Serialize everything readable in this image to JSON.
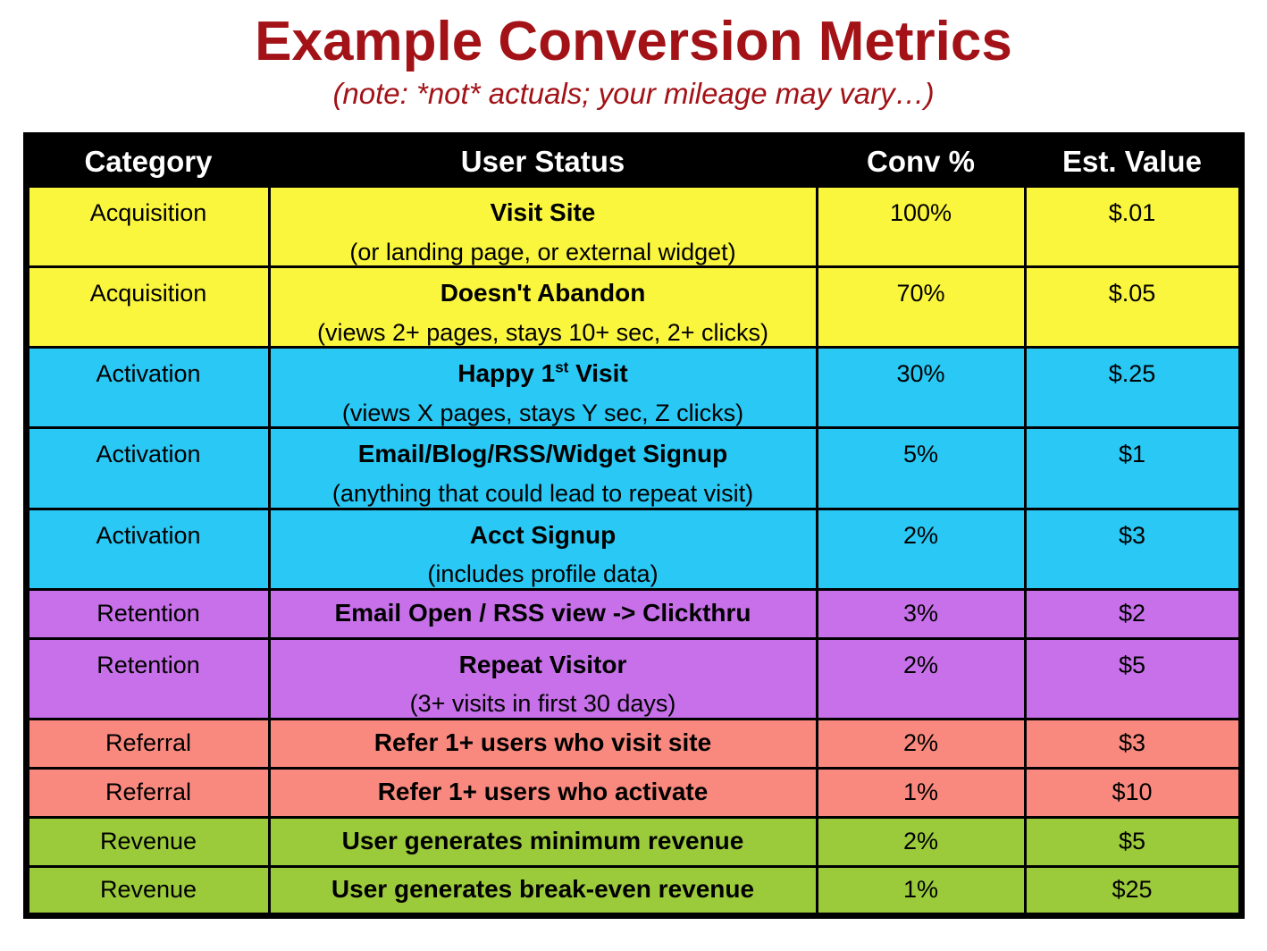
{
  "title": "Example Conversion Metrics",
  "subtitle": "(note: *not* actuals; your mileage may vary…)",
  "colors": {
    "title_text": "#A21217",
    "header_bg": "#000000",
    "header_text": "#FFFFFF",
    "acquisition": "#FAF53D",
    "activation": "#29C8F5",
    "retention": "#C770E9",
    "referral": "#F9897F",
    "revenue": "#9BCA3B"
  },
  "table": {
    "columns": [
      "Category",
      "User Status",
      "Conv %",
      "Est. Value"
    ],
    "rows": [
      {
        "category": "Acquisition",
        "color_key": "acquisition",
        "status": "Visit Site",
        "note": "(or landing page, or external widget)",
        "conv": "100%",
        "value": "$.01"
      },
      {
        "category": "Acquisition",
        "color_key": "acquisition",
        "status": "Doesn't Abandon",
        "note": "(views 2+ pages, stays 10+ sec, 2+ clicks)",
        "conv": "70%",
        "value": "$.05"
      },
      {
        "category": "Activation",
        "color_key": "activation",
        "status_parts": [
          {
            "text": "Happy 1"
          },
          {
            "text": "st",
            "sup": true
          },
          {
            "text": " Visit"
          }
        ],
        "note": "(views X pages, stays Y sec, Z clicks)",
        "conv": "30%",
        "value": "$.25"
      },
      {
        "category": "Activation",
        "color_key": "activation",
        "status": "Email/Blog/RSS/Widget Signup",
        "note": "(anything that could lead to repeat visit)",
        "conv": "5%",
        "value": "$1"
      },
      {
        "category": "Activation",
        "color_key": "activation",
        "status": "Acct Signup",
        "note": "(includes profile data)",
        "conv": "2%",
        "value": "$3"
      },
      {
        "category": "Retention",
        "color_key": "retention",
        "status": "Email Open / RSS view -> Clickthru",
        "conv": "3%",
        "value": "$2"
      },
      {
        "category": "Retention",
        "color_key": "retention",
        "status": "Repeat Visitor",
        "note": "(3+ visits in first 30 days)",
        "conv": "2%",
        "value": "$5"
      },
      {
        "category": "Referral",
        "color_key": "referral",
        "status": "Refer 1+ users who visit site",
        "conv": "2%",
        "value": "$3"
      },
      {
        "category": "Referral",
        "color_key": "referral",
        "status": "Refer 1+ users who activate",
        "conv": "1%",
        "value": "$10"
      },
      {
        "category": "Revenue",
        "color_key": "revenue",
        "status": "User generates minimum revenue",
        "conv": "2%",
        "value": "$5"
      },
      {
        "category": "Revenue",
        "color_key": "revenue",
        "status": "User generates break-even revenue",
        "conv": "1%",
        "value": "$25"
      }
    ]
  },
  "chart_data": {
    "type": "table",
    "title": "Example Conversion Metrics",
    "subtitle": "(note: *not* actuals; your mileage may vary…)",
    "columns": [
      "Category",
      "User Status",
      "Conv %",
      "Est. Value"
    ],
    "rows": [
      [
        "Acquisition",
        "Visit Site (or landing page, or external widget)",
        "100%",
        "$.01"
      ],
      [
        "Acquisition",
        "Doesn't Abandon (views 2+ pages, stays 10+ sec, 2+ clicks)",
        "70%",
        "$.05"
      ],
      [
        "Activation",
        "Happy 1st Visit (views X pages, stays Y sec, Z clicks)",
        "30%",
        "$.25"
      ],
      [
        "Activation",
        "Email/Blog/RSS/Widget Signup (anything that could lead to repeat visit)",
        "5%",
        "$1"
      ],
      [
        "Activation",
        "Acct Signup (includes profile data)",
        "2%",
        "$3"
      ],
      [
        "Retention",
        "Email Open / RSS view -> Clickthru",
        "3%",
        "$2"
      ],
      [
        "Retention",
        "Repeat Visitor (3+ visits in first 30 days)",
        "2%",
        "$5"
      ],
      [
        "Referral",
        "Refer 1+ users who visit site",
        "2%",
        "$3"
      ],
      [
        "Referral",
        "Refer 1+ users who activate",
        "1%",
        "$10"
      ],
      [
        "Revenue",
        "User generates minimum revenue",
        "2%",
        "$5"
      ],
      [
        "Revenue",
        "User generates break-even revenue",
        "1%",
        "$25"
      ]
    ],
    "row_group_colors": {
      "Acquisition": "#FAF53D",
      "Activation": "#29C8F5",
      "Retention": "#C770E9",
      "Referral": "#F9897F",
      "Revenue": "#9BCA3B"
    },
    "header_style": "white bold text on black background"
  }
}
